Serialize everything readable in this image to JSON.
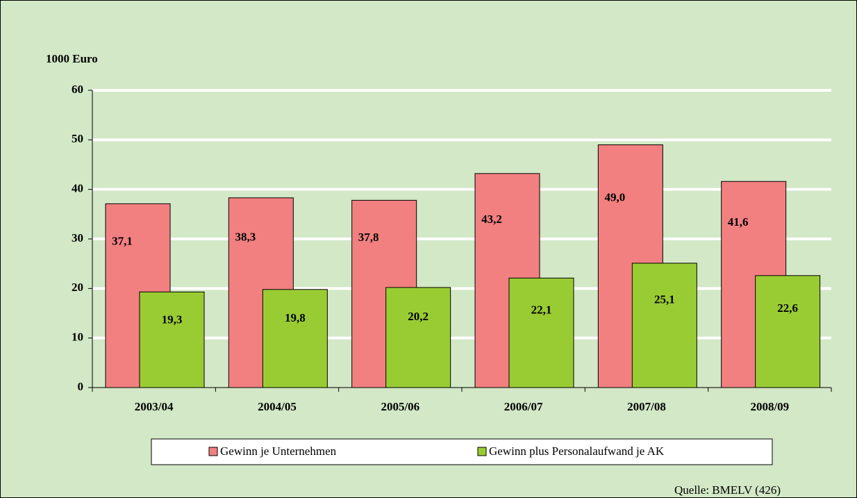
{
  "chart_data": {
    "type": "bar",
    "y_axis_label": "1000 Euro",
    "categories": [
      "2003/04",
      "2004/05",
      "2005/06",
      "2006/07",
      "2007/08",
      "2008/09"
    ],
    "series": [
      {
        "name": "Gewinn je Unternehmen",
        "color": "#f28080",
        "values": [
          37.1,
          38.3,
          37.8,
          43.2,
          49.0,
          41.6
        ],
        "value_labels": [
          "37,1",
          "38,3",
          "37,8",
          "43,2",
          "49,0",
          "41,6"
        ]
      },
      {
        "name": "Gewinn plus Personalaufwand je AK",
        "color": "#99cc33",
        "values": [
          19.3,
          19.8,
          20.2,
          22.1,
          25.1,
          22.6
        ],
        "value_labels": [
          "19,3",
          "19,8",
          "20,2",
          "22,1",
          "25,1",
          "22,6"
        ]
      }
    ],
    "ylim": [
      0,
      60
    ],
    "yticks": [
      0,
      10,
      20,
      30,
      40,
      50,
      60
    ],
    "grid": true,
    "legend": "bottom",
    "source": "Quelle: BMELV (426)"
  }
}
